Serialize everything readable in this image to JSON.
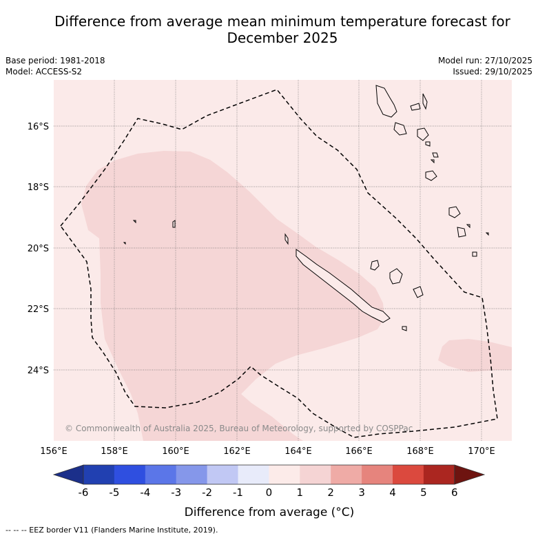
{
  "header": {
    "title_line1": "Difference from average mean minimum temperature forecast for",
    "title_line2": "December 2025",
    "base_period": "Base period: 1981-2018",
    "model": "Model: ACCESS-S2",
    "model_run": "Model run: 27/10/2025",
    "issued": "Issued: 29/10/2025"
  },
  "map": {
    "background_color": "#fbeae9",
    "anomaly_color": "#f5d6d6",
    "lat_labels": [
      "16°S",
      "18°S",
      "20°S",
      "22°S",
      "24°S"
    ],
    "lon_labels": [
      "156°E",
      "158°E",
      "160°E",
      "162°E",
      "164°E",
      "166°E",
      "168°E",
      "170°E"
    ],
    "copyright": "© Commonwealth of Australia 2025, Bureau of Meteorology, supported by COSPPac"
  },
  "colorbar": {
    "title": "Difference from average (°C)",
    "ticks": [
      "-6",
      "-5",
      "-4",
      "-3",
      "-2",
      "-1",
      "0",
      "1",
      "2",
      "3",
      "4",
      "5",
      "6"
    ],
    "colors": [
      "#2140b1",
      "#2f4fe0",
      "#5b76e8",
      "#8597ea",
      "#c1c8f4",
      "#e8ebfa",
      "#fcebe9",
      "#f5d4d4",
      "#efaba6",
      "#e6847d",
      "#db493e",
      "#ab2620"
    ],
    "under_color": "#1b2f8a",
    "over_color": "#6e1410"
  },
  "legend": {
    "eez": "--  --  -- EEZ border V11 (Flanders Marine Institute, 2019)."
  }
}
